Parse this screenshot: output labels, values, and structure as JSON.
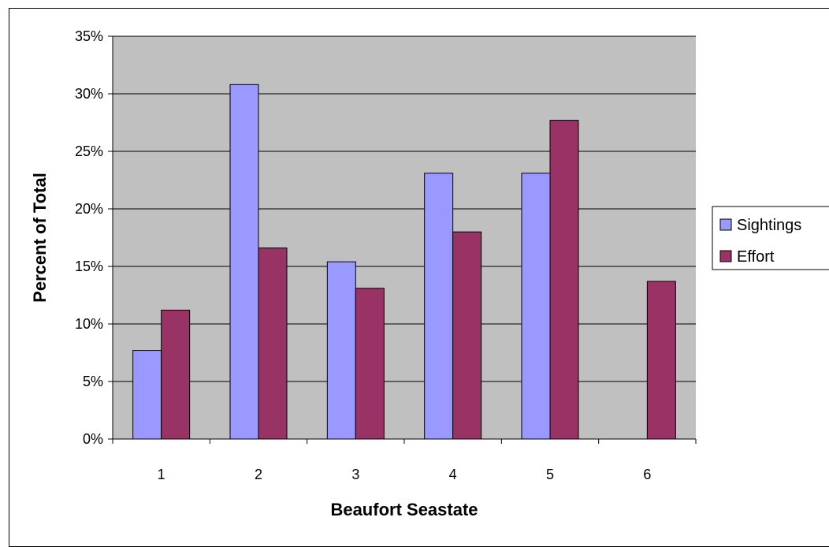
{
  "chart_data": {
    "type": "bar",
    "title": "",
    "xlabel": "Beaufort Seastate",
    "ylabel": "Percent of Total",
    "categories": [
      "1",
      "2",
      "3",
      "4",
      "5",
      "6"
    ],
    "series": [
      {
        "name": "Sightings",
        "values": [
          7.7,
          30.8,
          15.4,
          23.1,
          23.1,
          0
        ]
      },
      {
        "name": "Effort",
        "values": [
          11.2,
          16.6,
          13.1,
          18.0,
          27.7,
          13.7
        ]
      }
    ],
    "ylim": [
      0,
      35
    ],
    "yticks": [
      0,
      5,
      10,
      15,
      20,
      25,
      30,
      35
    ],
    "ytick_labels": [
      "0%",
      "5%",
      "10%",
      "15%",
      "20%",
      "25%",
      "30%",
      "35%"
    ],
    "grid": true,
    "legend_position": "right",
    "colors": {
      "plot_background": "#c0c0c0",
      "sightings": "#9999ff",
      "effort": "#993366",
      "gridline": "#000000"
    }
  }
}
